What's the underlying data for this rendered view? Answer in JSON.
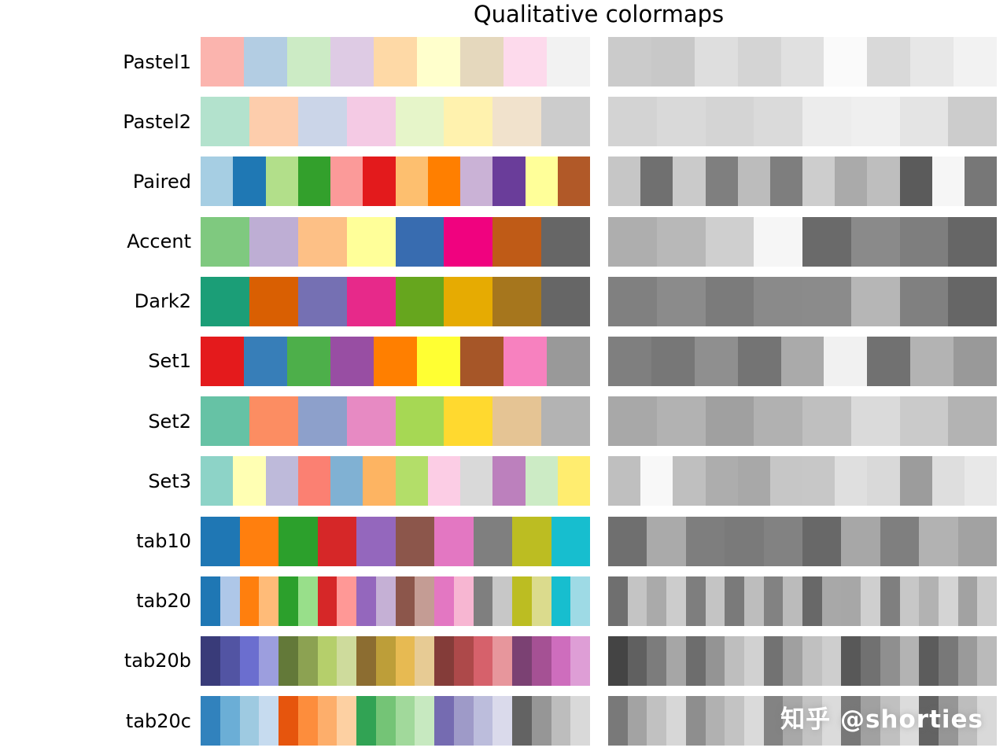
{
  "title": "Qualitative colormaps",
  "watermark": "知乎 @shorties",
  "chart_data": {
    "type": "table",
    "title": "Qualitative colormaps",
    "columns": [
      "colormap_name",
      "color_swatches",
      "grayscale_swatches"
    ],
    "layout": {
      "left_column": "color swatch bar",
      "right_column": "grayscale luminance bar",
      "grid": false,
      "legend": "none"
    },
    "rows": [
      {
        "name": "Pastel1",
        "colors": [
          "#fbb4ae",
          "#b3cde3",
          "#ccebc5",
          "#decbe4",
          "#fed9a6",
          "#ffffcc",
          "#e5d8bd",
          "#fddaec",
          "#f2f2f2"
        ]
      },
      {
        "name": "Pastel2",
        "colors": [
          "#b3e2cd",
          "#fdcdac",
          "#cbd5e8",
          "#f4cae4",
          "#e6f5c9",
          "#fff2ae",
          "#f1e2cc",
          "#cccccc"
        ]
      },
      {
        "name": "Paired",
        "colors": [
          "#a6cee3",
          "#1f78b4",
          "#b2df8a",
          "#33a02c",
          "#fb9a99",
          "#e31a1c",
          "#fdbf6f",
          "#ff7f00",
          "#cab2d6",
          "#6a3d9a",
          "#ffff99",
          "#b15928"
        ]
      },
      {
        "name": "Accent",
        "colors": [
          "#7fc97f",
          "#beaed4",
          "#fdc086",
          "#ffff99",
          "#386cb0",
          "#f0027f",
          "#bf5b17",
          "#666666"
        ]
      },
      {
        "name": "Dark2",
        "colors": [
          "#1b9e77",
          "#d95f02",
          "#7570b3",
          "#e7298a",
          "#66a61e",
          "#e6ab02",
          "#a6761d",
          "#666666"
        ]
      },
      {
        "name": "Set1",
        "colors": [
          "#e41a1c",
          "#377eb8",
          "#4daf4a",
          "#984ea3",
          "#ff7f00",
          "#ffff33",
          "#a65628",
          "#f781bf",
          "#999999"
        ]
      },
      {
        "name": "Set2",
        "colors": [
          "#66c2a5",
          "#fc8d62",
          "#8da0cb",
          "#e78ac3",
          "#a6d854",
          "#ffd92f",
          "#e5c494",
          "#b3b3b3"
        ]
      },
      {
        "name": "Set3",
        "colors": [
          "#8dd3c7",
          "#ffffb3",
          "#bebada",
          "#fb8072",
          "#80b1d3",
          "#fdb462",
          "#b3de69",
          "#fccde5",
          "#d9d9d9",
          "#bc80bd",
          "#ccebc5",
          "#ffed6f"
        ]
      },
      {
        "name": "tab10",
        "colors": [
          "#1f77b4",
          "#ff7f0e",
          "#2ca02c",
          "#d62728",
          "#9467bd",
          "#8c564b",
          "#e377c2",
          "#7f7f7f",
          "#bcbd22",
          "#17becf"
        ]
      },
      {
        "name": "tab20",
        "colors": [
          "#1f77b4",
          "#aec7e8",
          "#ff7f0e",
          "#ffbb78",
          "#2ca02c",
          "#98df8a",
          "#d62728",
          "#ff9896",
          "#9467bd",
          "#c5b0d5",
          "#8c564b",
          "#c49c94",
          "#e377c2",
          "#f7b6d2",
          "#7f7f7f",
          "#c7c7c7",
          "#bcbd22",
          "#dbdb8d",
          "#17becf",
          "#9edae5"
        ]
      },
      {
        "name": "tab20b",
        "colors": [
          "#393b79",
          "#5254a3",
          "#6b6ecf",
          "#9c9ede",
          "#637939",
          "#8ca252",
          "#b5cf6b",
          "#cedb9c",
          "#8c6d31",
          "#bd9e39",
          "#e7ba52",
          "#e7cb94",
          "#843c39",
          "#ad494a",
          "#d6616b",
          "#e7969c",
          "#7b4173",
          "#a55194",
          "#ce6dbd",
          "#de9ed6"
        ]
      },
      {
        "name": "tab20c",
        "colors": [
          "#3182bd",
          "#6baed6",
          "#9ecae1",
          "#c6dbef",
          "#e6550d",
          "#fd8d3c",
          "#fdae6b",
          "#fdd0a2",
          "#31a354",
          "#74c476",
          "#a1d99b",
          "#c7e9c0",
          "#756bb1",
          "#9e9ac8",
          "#bcbddc",
          "#dadaeb",
          "#636363",
          "#969696",
          "#bdbdbd",
          "#d9d9d9"
        ]
      }
    ]
  }
}
